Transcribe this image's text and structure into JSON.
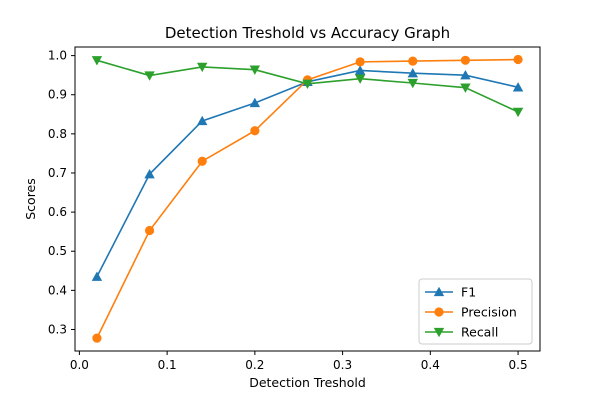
{
  "chart_data": {
    "type": "line",
    "title": "Detection Treshold vs Accuracy Graph",
    "xlabel": "Detection Treshold",
    "ylabel": "Scores",
    "xlim": [
      -0.005,
      0.525
    ],
    "ylim": [
      0.245,
      1.022
    ],
    "xticks": [
      0.0,
      0.1,
      0.2,
      0.3,
      0.4,
      0.5
    ],
    "xtick_labels": [
      "0.0",
      "0.1",
      "0.2",
      "0.3",
      "0.4",
      "0.5"
    ],
    "yticks": [
      0.3,
      0.4,
      0.5,
      0.6,
      0.7,
      0.8,
      0.9,
      1.0
    ],
    "ytick_labels": [
      "0.3",
      "0.4",
      "0.5",
      "0.6",
      "0.7",
      "0.8",
      "0.9",
      "1.0"
    ],
    "grid": false,
    "legend_position": "lower-right",
    "x": [
      0.02,
      0.08,
      0.14,
      0.2,
      0.26,
      0.32,
      0.38,
      0.44,
      0.5
    ],
    "series": [
      {
        "name": "F1",
        "color": "#1f77b4",
        "marker": "triangle-up",
        "values": [
          0.435,
          0.697,
          0.833,
          0.879,
          0.933,
          0.962,
          0.955,
          0.95,
          0.919
        ]
      },
      {
        "name": "Precision",
        "color": "#ff7f0e",
        "marker": "circle",
        "values": [
          0.278,
          0.553,
          0.73,
          0.808,
          0.938,
          0.984,
          0.986,
          0.988,
          0.99
        ]
      },
      {
        "name": "Recall",
        "color": "#2ca02c",
        "marker": "triangle-down",
        "values": [
          0.988,
          0.949,
          0.971,
          0.964,
          0.928,
          0.941,
          0.93,
          0.918,
          0.856
        ]
      }
    ]
  }
}
